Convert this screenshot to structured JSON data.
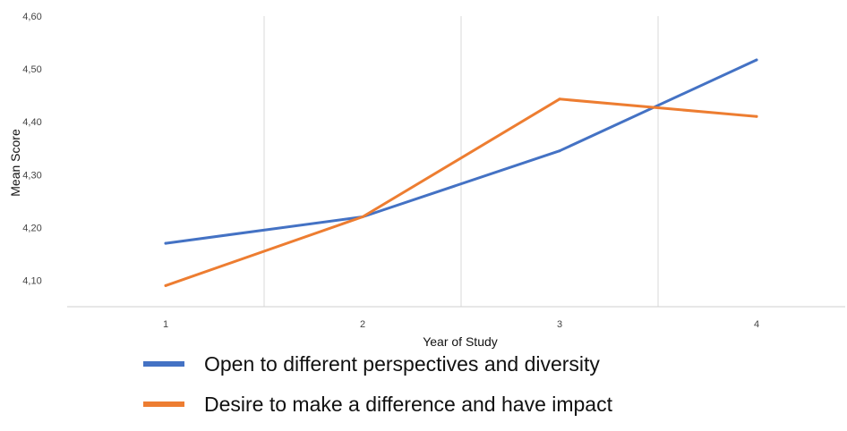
{
  "chart_data": {
    "type": "line",
    "xlabel": "Year of Study",
    "ylabel": "Mean Score",
    "x": [
      "1",
      "2",
      "3",
      "4"
    ],
    "ylim": [
      4.05,
      4.6
    ],
    "yticks": [
      "4,10",
      "4,20",
      "4,30",
      "4,40",
      "4,50",
      "4,60"
    ],
    "ytick_values": [
      4.1,
      4.2,
      4.3,
      4.4,
      4.5,
      4.6
    ],
    "grid": "vertical",
    "legend_position": "bottom",
    "series": [
      {
        "name": "Open to different perspectives and diversity",
        "color": "#4472c4",
        "values": [
          4.17,
          4.22,
          4.345,
          4.517
        ]
      },
      {
        "name": "Desire to make a difference and have impact",
        "color": "#ed7d31",
        "values": [
          4.09,
          4.22,
          4.443,
          4.41
        ]
      }
    ]
  }
}
